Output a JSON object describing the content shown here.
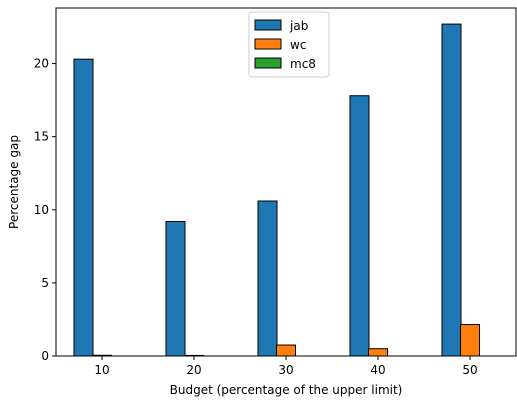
{
  "chart_data": {
    "type": "bar",
    "title": "",
    "xlabel": "Budget (percentage of the upper limit)",
    "ylabel": "Percentage gap",
    "categories": [
      "10",
      "20",
      "30",
      "40",
      "50"
    ],
    "series": [
      {
        "name": "jab",
        "color": "#1f77b4",
        "values": [
          20.3,
          9.2,
          10.6,
          17.8,
          22.7
        ]
      },
      {
        "name": "wc",
        "color": "#ff7f0e",
        "values": [
          0.05,
          0.04,
          0.75,
          0.5,
          2.15
        ]
      },
      {
        "name": "mc8",
        "color": "#2ca02c",
        "values": [
          0.0,
          0.0,
          0.0,
          0.0,
          0.0
        ]
      }
    ],
    "ylim": [
      0,
      23.8
    ],
    "yticks": [
      0,
      5,
      10,
      15,
      20
    ],
    "grid": false,
    "legend_position": "top-center",
    "bar_edge_color": "#000000"
  }
}
